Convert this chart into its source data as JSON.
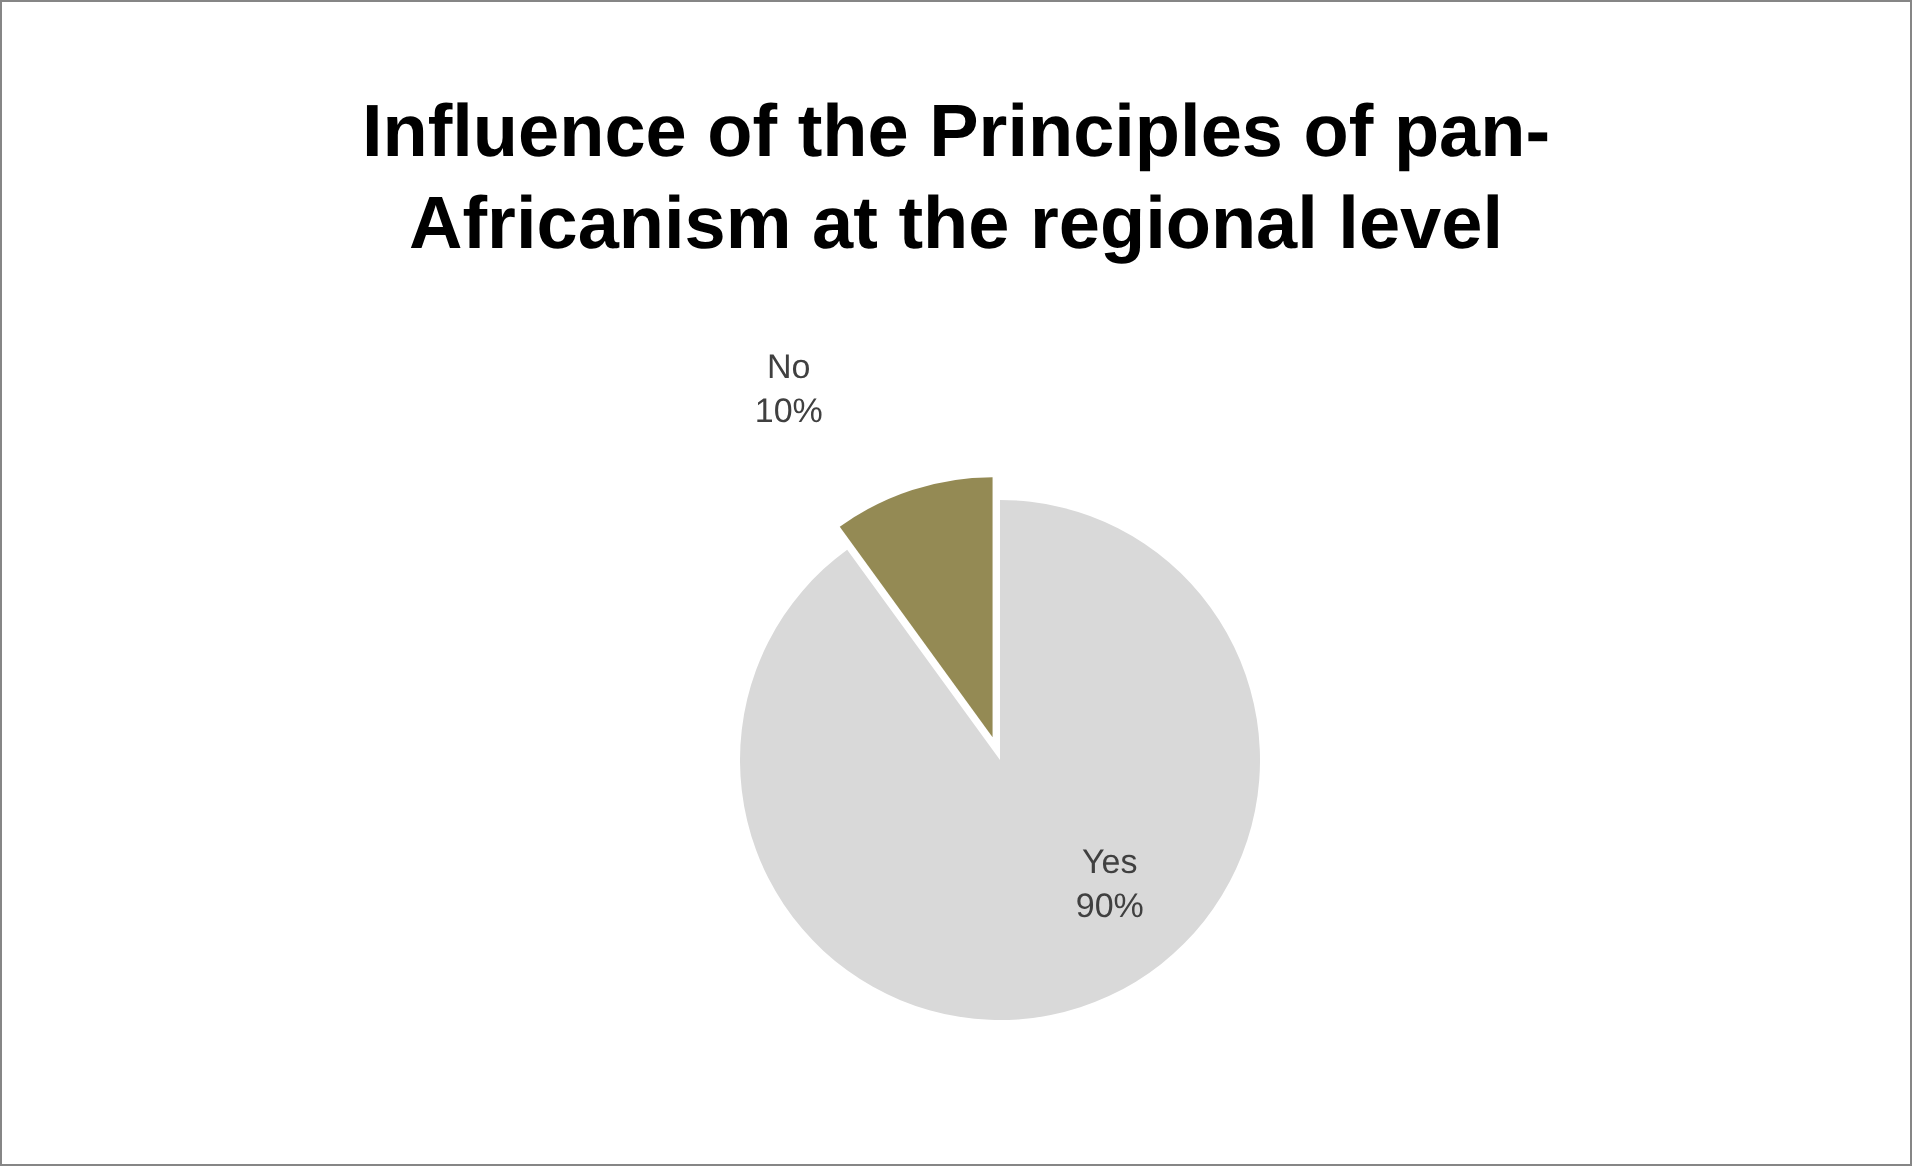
{
  "chart_data": {
    "type": "pie",
    "title": "Influence of the Principles of pan-Africanism at the regional level",
    "categories": [
      "Yes",
      "No"
    ],
    "values": [
      90,
      10
    ],
    "value_labels": [
      "90%",
      "10%"
    ],
    "colors": [
      "#d9d9d9",
      "#948a54"
    ]
  }
}
